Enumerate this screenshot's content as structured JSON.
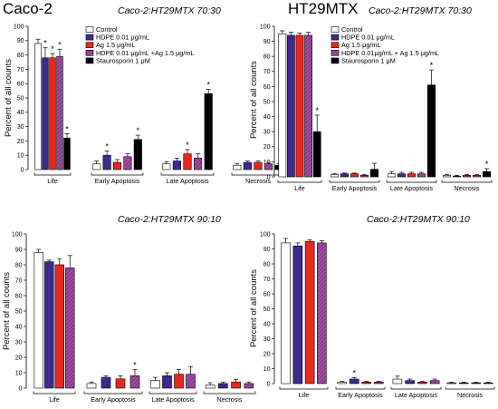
{
  "colors": {
    "control": "#ffffff",
    "hdpe": "#3d2a8c",
    "ag": "#e8281e",
    "hdpe_ag": "#8a3d8c",
    "stauro": "#000000"
  },
  "legend": {
    "labels": [
      "Control",
      "HDPE 0.01 μg/mL",
      "Ag 1.5 μg/mL",
      "HDPE 0.01 μg/mL +Ag 1.5 μg/mL",
      "Staurosporin 1 μM"
    ],
    "labels_b": [
      "Control",
      "HDPE 0.01 μg/mL",
      "Ag 1.5 μg/mL",
      "HDPE 0.01μg/mL + Ag 1.5 μg/mL",
      "Staurosporin 1 μM"
    ]
  },
  "chart_data": [
    {
      "type": "bar",
      "title": "Caco-2",
      "subtitle": "Caco-2:HT29MTX   70:30",
      "ylabel": "Percent of all counts",
      "ylim": [
        0,
        100
      ],
      "yticks": [
        "0",
        "10",
        "20",
        "30",
        "40",
        "50",
        "60",
        "70",
        "80",
        "90",
        "100"
      ],
      "categories": [
        "Life",
        "Early Apoptosis",
        "Late Apoptosis",
        "Necrosis"
      ],
      "legend_position": "top-right",
      "series": [
        {
          "name": "Control",
          "values": [
            88,
            4,
            4,
            3
          ],
          "errors": [
            3,
            2,
            1.5,
            1
          ]
        },
        {
          "name": "HDPE 0.01 μg/mL",
          "values": [
            78,
            10,
            6,
            5
          ],
          "errors": [
            7,
            3,
            2,
            1
          ]
        },
        {
          "name": "Ag 1.5 μg/mL",
          "values": [
            78,
            5,
            11,
            5
          ],
          "errors": [
            3,
            2,
            3,
            1
          ]
        },
        {
          "name": "HDPE 0.01 μg/mL +Ag 1.5 μg/mL",
          "values": [
            79,
            9,
            8,
            4
          ],
          "errors": [
            5,
            2,
            3,
            1
          ]
        },
        {
          "name": "Staurosporin 1 μM",
          "values": [
            22,
            21,
            53,
            3
          ],
          "errors": [
            3,
            3,
            3,
            1
          ]
        }
      ],
      "significant": [
        [
          0,
          1
        ],
        [
          0,
          2
        ],
        [
          0,
          3
        ],
        [
          0,
          4
        ],
        [
          1,
          1
        ],
        [
          1,
          4
        ],
        [
          2,
          2
        ],
        [
          2,
          4
        ]
      ]
    },
    {
      "type": "bar",
      "title": "HT29MTX",
      "subtitle": "Caco-2:HT29MTX   70:30",
      "ylabel": "Percent of all counts",
      "ylim": [
        0,
        100
      ],
      "yticks": [
        "0",
        "10",
        "20",
        "30",
        "40",
        "50",
        "60",
        "70",
        "80",
        "90",
        "100"
      ],
      "categories": [
        "Life",
        "Early Apoptosis",
        "Late Apoptosis",
        "Necrosis"
      ],
      "legend_position": "top-right",
      "series": [
        {
          "name": "Control",
          "values": [
            95,
            1.5,
            2,
            1
          ],
          "errors": [
            2,
            0.5,
            1.5,
            0.5
          ]
        },
        {
          "name": "HDPE 0.01 μg/mL",
          "values": [
            94,
            2,
            2,
            0.5
          ],
          "errors": [
            2,
            0.5,
            1,
            0.5
          ]
        },
        {
          "name": "Ag 1.5 μg/mL",
          "values": [
            94,
            2,
            2,
            1
          ],
          "errors": [
            1.5,
            0.5,
            1,
            0.5
          ]
        },
        {
          "name": "HDPE 0.01μg/mL + Ag 1.5 μg/mL",
          "values": [
            94,
            1,
            2,
            1
          ],
          "errors": [
            2,
            0.5,
            1,
            0.5
          ]
        },
        {
          "name": "Staurosporin 1 μM",
          "values": [
            30,
            5,
            61,
            3.5
          ],
          "errors": [
            11,
            4,
            10,
            2
          ]
        }
      ],
      "significant": [
        [
          0,
          4
        ],
        [
          2,
          4
        ],
        [
          3,
          4
        ]
      ]
    },
    {
      "type": "bar",
      "title": "",
      "subtitle": "Caco-2:HT29MTX   90:10",
      "ylabel": "Percent of all counts",
      "ylim": [
        0,
        100
      ],
      "yticks": [
        "0",
        "10",
        "20",
        "30",
        "40",
        "50",
        "60",
        "70",
        "80",
        "90",
        "100"
      ],
      "categories": [
        "Life",
        "Early Apoptosis",
        "Late Apoptosis",
        "Necrosis"
      ],
      "series": [
        {
          "name": "Control",
          "values": [
            88,
            3,
            5,
            2
          ],
          "errors": [
            2,
            1,
            2,
            1.5
          ]
        },
        {
          "name": "HDPE 0.01 μg/mL",
          "values": [
            82,
            7,
            8,
            3
          ],
          "errors": [
            1,
            1,
            2,
            1
          ]
        },
        {
          "name": "Ag 1.5 μg/mL",
          "values": [
            80,
            6,
            9,
            4
          ],
          "errors": [
            4,
            2,
            3,
            1.5
          ]
        },
        {
          "name": "HDPE 0.01 μg/mL +Ag 1.5 μg/mL",
          "values": [
            78,
            8,
            9,
            3
          ],
          "errors": [
            8,
            4,
            5,
            1
          ]
        }
      ],
      "significant": [
        [
          1,
          3
        ]
      ]
    },
    {
      "type": "bar",
      "title": "",
      "subtitle": "Caco-2:HT29MTX   90:10",
      "ylabel": "Percent of all counts",
      "ylim": [
        0,
        100
      ],
      "yticks": [
        "0",
        "10",
        "20",
        "30",
        "40",
        "50",
        "60",
        "70",
        "80",
        "90",
        "100"
      ],
      "categories": [
        "Life",
        "Early Apoptosis",
        "Late Apoptosis",
        "Necrosis"
      ],
      "series": [
        {
          "name": "Control",
          "values": [
            94,
            1,
            3,
            0.5
          ],
          "errors": [
            3,
            0.5,
            2,
            0.5
          ]
        },
        {
          "name": "HDPE 0.01 μg/mL",
          "values": [
            92,
            3,
            2,
            0.5
          ],
          "errors": [
            2,
            1,
            1,
            0.5
          ]
        },
        {
          "name": "Ag 1.5 μg/mL",
          "values": [
            95,
            1,
            1,
            0.5
          ],
          "errors": [
            1,
            0.5,
            0.5,
            0.5
          ]
        },
        {
          "name": "HDPE 0.01 μg/mL +Ag 1.5 μg/mL",
          "values": [
            94,
            1,
            2,
            0.5
          ],
          "errors": [
            1.5,
            0.5,
            1,
            0.5
          ]
        }
      ],
      "significant": [
        [
          1,
          1
        ]
      ]
    }
  ]
}
